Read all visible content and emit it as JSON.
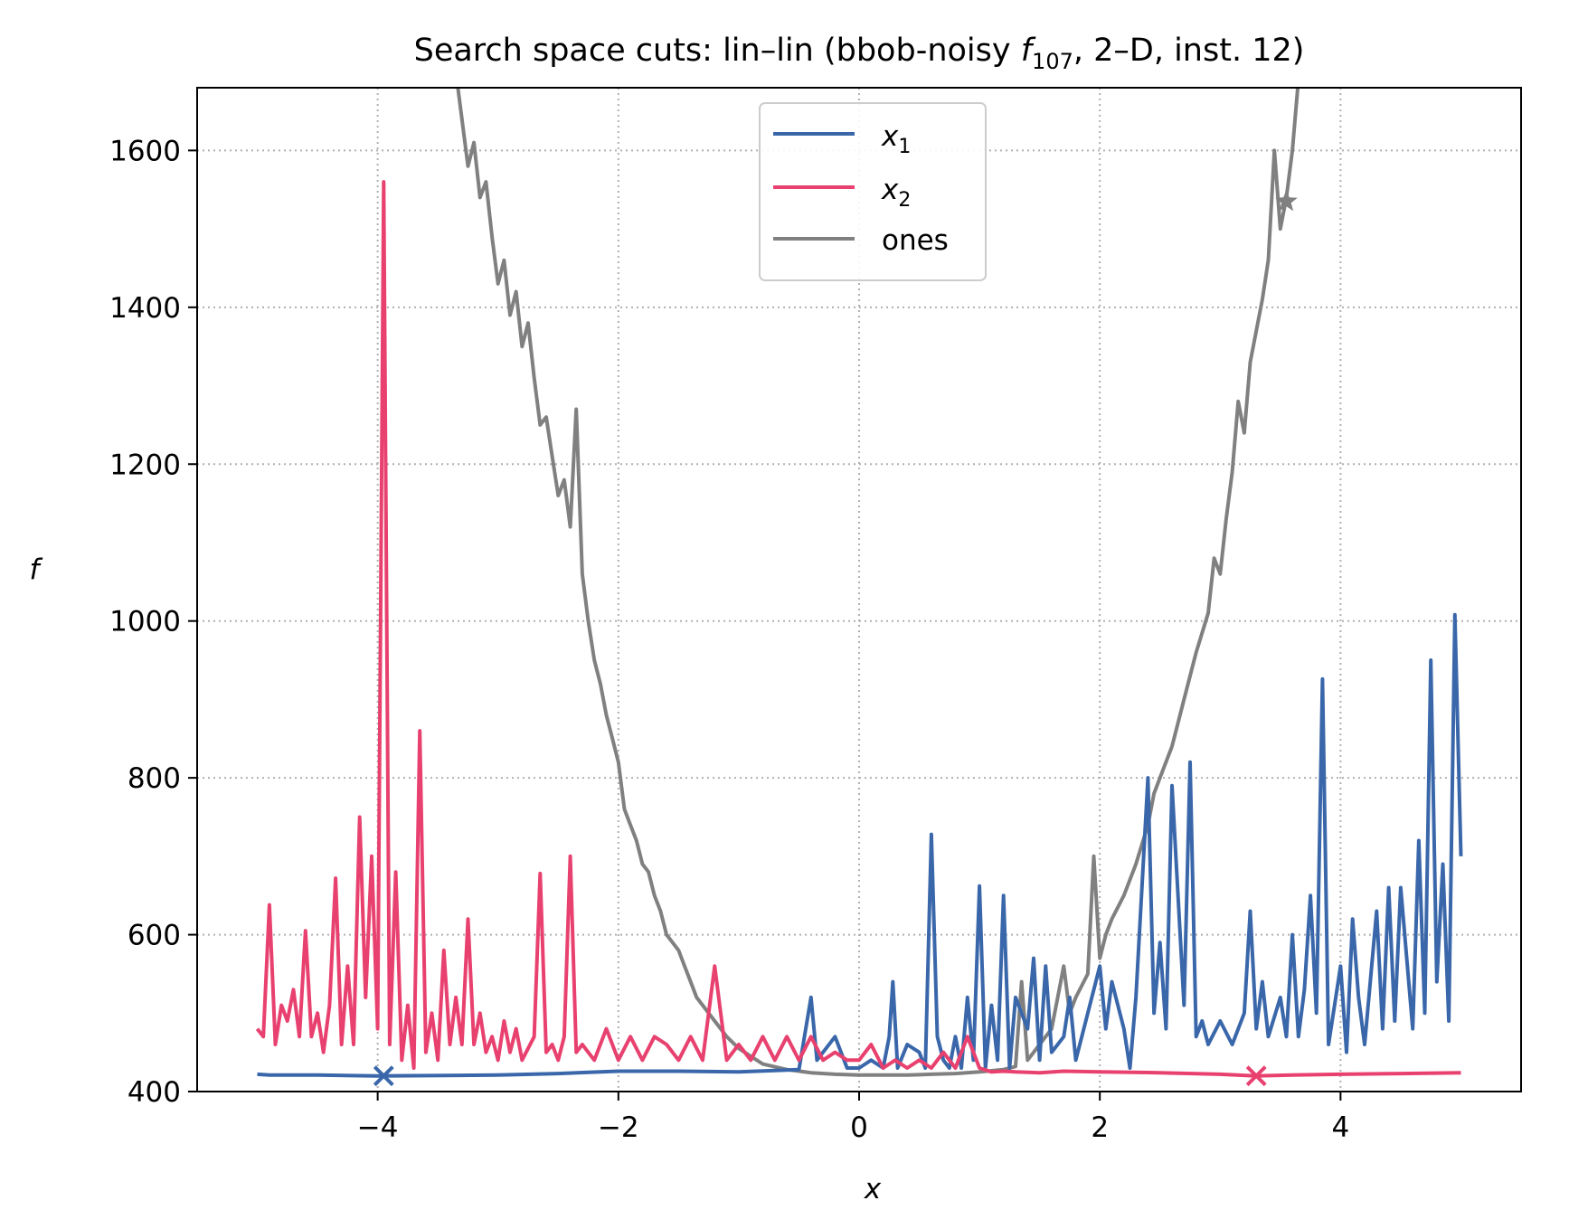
{
  "chart_data": {
    "type": "line",
    "title_prefix": "Search space cuts: lin–lin (bbob-noisy ",
    "title_func": "f",
    "title_sub": "107",
    "title_suffix": ", 2–D, inst. 12)",
    "xlabel": "x",
    "ylabel": "f",
    "xlim": [
      -5.5,
      5.5
    ],
    "ylim": [
      400,
      1680
    ],
    "xticks": [
      -4,
      -2,
      0,
      2,
      4
    ],
    "xtick_labels": [
      "−4",
      "−2",
      "0",
      "2",
      "4"
    ],
    "yticks": [
      400,
      600,
      800,
      1000,
      1200,
      1400,
      1600
    ],
    "ytick_labels": [
      "400",
      "600",
      "800",
      "1000",
      "1200",
      "1400",
      "1600"
    ],
    "grid": true,
    "legend_position": "top-center",
    "series": [
      {
        "name": "x",
        "sub": "1",
        "color": "#3a67aa",
        "marker": {
          "x": -3.95,
          "y": 420,
          "symbol": "x"
        },
        "points": [
          [
            -5.0,
            422
          ],
          [
            -4.9,
            421
          ],
          [
            -4.5,
            421
          ],
          [
            -4.0,
            420
          ],
          [
            -3.0,
            421
          ],
          [
            -2.5,
            423
          ],
          [
            -2.0,
            426
          ],
          [
            -1.5,
            426
          ],
          [
            -1.0,
            425
          ],
          [
            -0.5,
            428
          ],
          [
            -0.4,
            520
          ],
          [
            -0.35,
            440
          ],
          [
            -0.2,
            470
          ],
          [
            -0.1,
            430
          ],
          [
            0.0,
            430
          ],
          [
            0.1,
            440
          ],
          [
            0.2,
            430
          ],
          [
            0.25,
            470
          ],
          [
            0.28,
            540
          ],
          [
            0.32,
            430
          ],
          [
            0.4,
            460
          ],
          [
            0.5,
            450
          ],
          [
            0.55,
            430
          ],
          [
            0.6,
            728
          ],
          [
            0.65,
            470
          ],
          [
            0.7,
            440
          ],
          [
            0.75,
            430
          ],
          [
            0.8,
            470
          ],
          [
            0.85,
            430
          ],
          [
            0.9,
            520
          ],
          [
            0.95,
            440
          ],
          [
            1.0,
            662
          ],
          [
            1.05,
            430
          ],
          [
            1.1,
            510
          ],
          [
            1.15,
            440
          ],
          [
            1.2,
            650
          ],
          [
            1.25,
            430
          ],
          [
            1.3,
            520
          ],
          [
            1.4,
            480
          ],
          [
            1.45,
            570
          ],
          [
            1.5,
            440
          ],
          [
            1.55,
            560
          ],
          [
            1.6,
            450
          ],
          [
            1.7,
            470
          ],
          [
            1.75,
            520
          ],
          [
            1.8,
            440
          ],
          [
            1.9,
            500
          ],
          [
            2.0,
            560
          ],
          [
            2.05,
            480
          ],
          [
            2.1,
            540
          ],
          [
            2.2,
            480
          ],
          [
            2.25,
            430
          ],
          [
            2.3,
            520
          ],
          [
            2.4,
            800
          ],
          [
            2.45,
            500
          ],
          [
            2.5,
            590
          ],
          [
            2.55,
            480
          ],
          [
            2.6,
            790
          ],
          [
            2.7,
            510
          ],
          [
            2.75,
            820
          ],
          [
            2.8,
            470
          ],
          [
            2.85,
            490
          ],
          [
            2.9,
            460
          ],
          [
            3.0,
            490
          ],
          [
            3.1,
            460
          ],
          [
            3.2,
            500
          ],
          [
            3.25,
            630
          ],
          [
            3.3,
            480
          ],
          [
            3.35,
            540
          ],
          [
            3.4,
            470
          ],
          [
            3.5,
            520
          ],
          [
            3.55,
            470
          ],
          [
            3.6,
            600
          ],
          [
            3.65,
            470
          ],
          [
            3.7,
            530
          ],
          [
            3.75,
            650
          ],
          [
            3.8,
            500
          ],
          [
            3.85,
            926
          ],
          [
            3.9,
            460
          ],
          [
            4.0,
            560
          ],
          [
            4.05,
            450
          ],
          [
            4.1,
            620
          ],
          [
            4.15,
            520
          ],
          [
            4.2,
            460
          ],
          [
            4.3,
            630
          ],
          [
            4.35,
            480
          ],
          [
            4.4,
            660
          ],
          [
            4.45,
            490
          ],
          [
            4.5,
            660
          ],
          [
            4.6,
            480
          ],
          [
            4.65,
            720
          ],
          [
            4.7,
            500
          ],
          [
            4.75,
            950
          ],
          [
            4.8,
            540
          ],
          [
            4.85,
            690
          ],
          [
            4.9,
            490
          ],
          [
            4.95,
            1008
          ],
          [
            5.0,
            700
          ]
        ]
      },
      {
        "name": "x",
        "sub": "2",
        "color": "#e8416f",
        "marker": {
          "x": 3.3,
          "y": 420,
          "symbol": "x"
        },
        "points": [
          [
            -5.0,
            480
          ],
          [
            -4.95,
            470
          ],
          [
            -4.9,
            638
          ],
          [
            -4.85,
            460
          ],
          [
            -4.8,
            510
          ],
          [
            -4.75,
            490
          ],
          [
            -4.7,
            530
          ],
          [
            -4.65,
            470
          ],
          [
            -4.6,
            605
          ],
          [
            -4.55,
            470
          ],
          [
            -4.5,
            500
          ],
          [
            -4.45,
            450
          ],
          [
            -4.4,
            510
          ],
          [
            -4.35,
            672
          ],
          [
            -4.3,
            460
          ],
          [
            -4.25,
            560
          ],
          [
            -4.2,
            460
          ],
          [
            -4.15,
            750
          ],
          [
            -4.1,
            520
          ],
          [
            -4.05,
            700
          ],
          [
            -4.0,
            480
          ],
          [
            -3.95,
            1560
          ],
          [
            -3.9,
            460
          ],
          [
            -3.85,
            680
          ],
          [
            -3.8,
            440
          ],
          [
            -3.75,
            510
          ],
          [
            -3.7,
            430
          ],
          [
            -3.65,
            860
          ],
          [
            -3.6,
            450
          ],
          [
            -3.55,
            500
          ],
          [
            -3.5,
            440
          ],
          [
            -3.45,
            580
          ],
          [
            -3.4,
            460
          ],
          [
            -3.35,
            520
          ],
          [
            -3.3,
            460
          ],
          [
            -3.25,
            620
          ],
          [
            -3.2,
            460
          ],
          [
            -3.15,
            500
          ],
          [
            -3.1,
            450
          ],
          [
            -3.05,
            470
          ],
          [
            -3.0,
            440
          ],
          [
            -2.95,
            490
          ],
          [
            -2.9,
            450
          ],
          [
            -2.85,
            480
          ],
          [
            -2.8,
            440
          ],
          [
            -2.7,
            470
          ],
          [
            -2.65,
            678
          ],
          [
            -2.6,
            450
          ],
          [
            -2.55,
            460
          ],
          [
            -2.5,
            440
          ],
          [
            -2.45,
            470
          ],
          [
            -2.4,
            700
          ],
          [
            -2.35,
            450
          ],
          [
            -2.3,
            460
          ],
          [
            -2.2,
            440
          ],
          [
            -2.1,
            480
          ],
          [
            -2.0,
            440
          ],
          [
            -1.9,
            470
          ],
          [
            -1.8,
            440
          ],
          [
            -1.7,
            470
          ],
          [
            -1.6,
            460
          ],
          [
            -1.5,
            440
          ],
          [
            -1.4,
            470
          ],
          [
            -1.3,
            440
          ],
          [
            -1.2,
            560
          ],
          [
            -1.1,
            440
          ],
          [
            -1.0,
            460
          ],
          [
            -0.9,
            440
          ],
          [
            -0.8,
            470
          ],
          [
            -0.7,
            440
          ],
          [
            -0.6,
            470
          ],
          [
            -0.5,
            440
          ],
          [
            -0.4,
            470
          ],
          [
            -0.3,
            440
          ],
          [
            -0.2,
            450
          ],
          [
            -0.1,
            440
          ],
          [
            0.0,
            440
          ],
          [
            0.1,
            460
          ],
          [
            0.2,
            430
          ],
          [
            0.3,
            440
          ],
          [
            0.4,
            430
          ],
          [
            0.5,
            440
          ],
          [
            0.6,
            430
          ],
          [
            0.7,
            450
          ],
          [
            0.8,
            430
          ],
          [
            0.9,
            470
          ],
          [
            1.0,
            430
          ],
          [
            1.1,
            425
          ],
          [
            1.2,
            426
          ],
          [
            1.3,
            425
          ],
          [
            1.5,
            424
          ],
          [
            1.7,
            426
          ],
          [
            2.0,
            425
          ],
          [
            2.5,
            424
          ],
          [
            3.0,
            422
          ],
          [
            3.3,
            420
          ],
          [
            3.6,
            421
          ],
          [
            4.0,
            422
          ],
          [
            4.5,
            423
          ],
          [
            5.0,
            424
          ]
        ]
      },
      {
        "name": "ones",
        "color": "#808080",
        "marker": {
          "x": 3.55,
          "y": 1535,
          "symbol": "star"
        },
        "points": [
          [
            -3.35,
            1700
          ],
          [
            -3.3,
            1640
          ],
          [
            -3.25,
            1580
          ],
          [
            -3.2,
            1610
          ],
          [
            -3.15,
            1540
          ],
          [
            -3.1,
            1560
          ],
          [
            -3.05,
            1490
          ],
          [
            -3.0,
            1430
          ],
          [
            -2.95,
            1460
          ],
          [
            -2.9,
            1390
          ],
          [
            -2.85,
            1420
          ],
          [
            -2.8,
            1350
          ],
          [
            -2.75,
            1380
          ],
          [
            -2.7,
            1310
          ],
          [
            -2.65,
            1250
          ],
          [
            -2.6,
            1260
          ],
          [
            -2.55,
            1210
          ],
          [
            -2.5,
            1160
          ],
          [
            -2.45,
            1180
          ],
          [
            -2.4,
            1120
          ],
          [
            -2.35,
            1270
          ],
          [
            -2.3,
            1060
          ],
          [
            -2.25,
            1000
          ],
          [
            -2.2,
            950
          ],
          [
            -2.15,
            920
          ],
          [
            -2.1,
            880
          ],
          [
            -2.05,
            850
          ],
          [
            -2.0,
            820
          ],
          [
            -1.95,
            760
          ],
          [
            -1.9,
            740
          ],
          [
            -1.85,
            720
          ],
          [
            -1.8,
            690
          ],
          [
            -1.75,
            680
          ],
          [
            -1.7,
            650
          ],
          [
            -1.65,
            630
          ],
          [
            -1.6,
            600
          ],
          [
            -1.55,
            590
          ],
          [
            -1.5,
            580
          ],
          [
            -1.45,
            560
          ],
          [
            -1.4,
            540
          ],
          [
            -1.35,
            520
          ],
          [
            -1.3,
            510
          ],
          [
            -1.2,
            490
          ],
          [
            -1.1,
            470
          ],
          [
            -1.0,
            455
          ],
          [
            -0.9,
            445
          ],
          [
            -0.8,
            435
          ],
          [
            -0.6,
            428
          ],
          [
            -0.4,
            424
          ],
          [
            -0.2,
            422
          ],
          [
            0.0,
            421
          ],
          [
            0.2,
            421
          ],
          [
            0.4,
            421
          ],
          [
            0.6,
            422
          ],
          [
            0.8,
            423
          ],
          [
            1.0,
            425
          ],
          [
            1.2,
            428
          ],
          [
            1.3,
            432
          ],
          [
            1.35,
            540
          ],
          [
            1.4,
            440
          ],
          [
            1.5,
            460
          ],
          [
            1.6,
            480
          ],
          [
            1.7,
            560
          ],
          [
            1.75,
            500
          ],
          [
            1.8,
            520
          ],
          [
            1.9,
            550
          ],
          [
            1.95,
            700
          ],
          [
            2.0,
            570
          ],
          [
            2.05,
            600
          ],
          [
            2.1,
            620
          ],
          [
            2.2,
            650
          ],
          [
            2.3,
            690
          ],
          [
            2.4,
            740
          ],
          [
            2.45,
            780
          ],
          [
            2.5,
            800
          ],
          [
            2.6,
            840
          ],
          [
            2.7,
            900
          ],
          [
            2.8,
            960
          ],
          [
            2.9,
            1010
          ],
          [
            2.95,
            1080
          ],
          [
            3.0,
            1060
          ],
          [
            3.05,
            1130
          ],
          [
            3.1,
            1190
          ],
          [
            3.15,
            1280
          ],
          [
            3.2,
            1240
          ],
          [
            3.25,
            1330
          ],
          [
            3.3,
            1370
          ],
          [
            3.35,
            1410
          ],
          [
            3.4,
            1460
          ],
          [
            3.45,
            1600
          ],
          [
            3.5,
            1500
          ],
          [
            3.55,
            1540
          ],
          [
            3.6,
            1600
          ],
          [
            3.65,
            1690
          ]
        ]
      }
    ]
  }
}
